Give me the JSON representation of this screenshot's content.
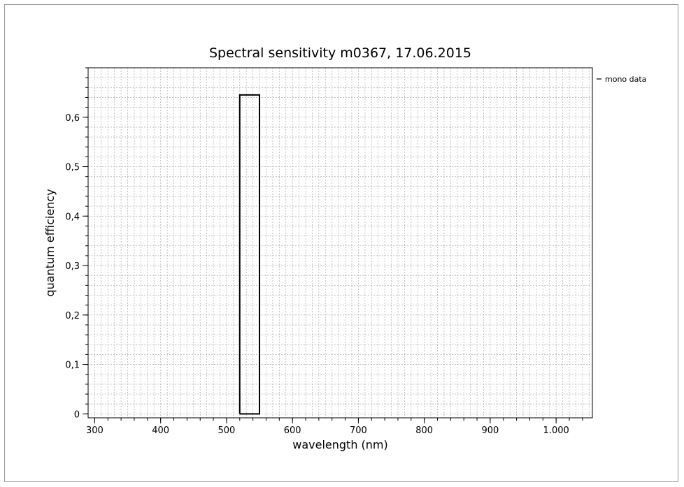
{
  "chart_data": {
    "type": "line",
    "title": "Spectral sensitivity m0367, 17.06.2015",
    "xlabel": "wavelength (nm)",
    "ylabel": "quantum efficiency",
    "xlim": [
      290,
      1055
    ],
    "ylim": [
      -0.008,
      0.7
    ],
    "x_ticks": [
      300,
      400,
      500,
      600,
      700,
      800,
      900,
      1000
    ],
    "x_tick_labels": [
      "300",
      "400",
      "500",
      "600",
      "700",
      "800",
      "900",
      "1.000"
    ],
    "y_ticks": [
      0,
      0.1,
      0.2,
      0.3,
      0.4,
      0.5,
      0.6
    ],
    "y_tick_labels": [
      "0",
      "0,1",
      "0,2",
      "0,3",
      "0,4",
      "0,5",
      "0,6"
    ],
    "grid": true,
    "legend_position": "top-right outside",
    "series": [
      {
        "name": "mono data",
        "color": "#000000",
        "x": [
          520,
          520,
          550,
          550,
          520
        ],
        "y": [
          0,
          0.645,
          0.645,
          0,
          0
        ]
      }
    ]
  }
}
